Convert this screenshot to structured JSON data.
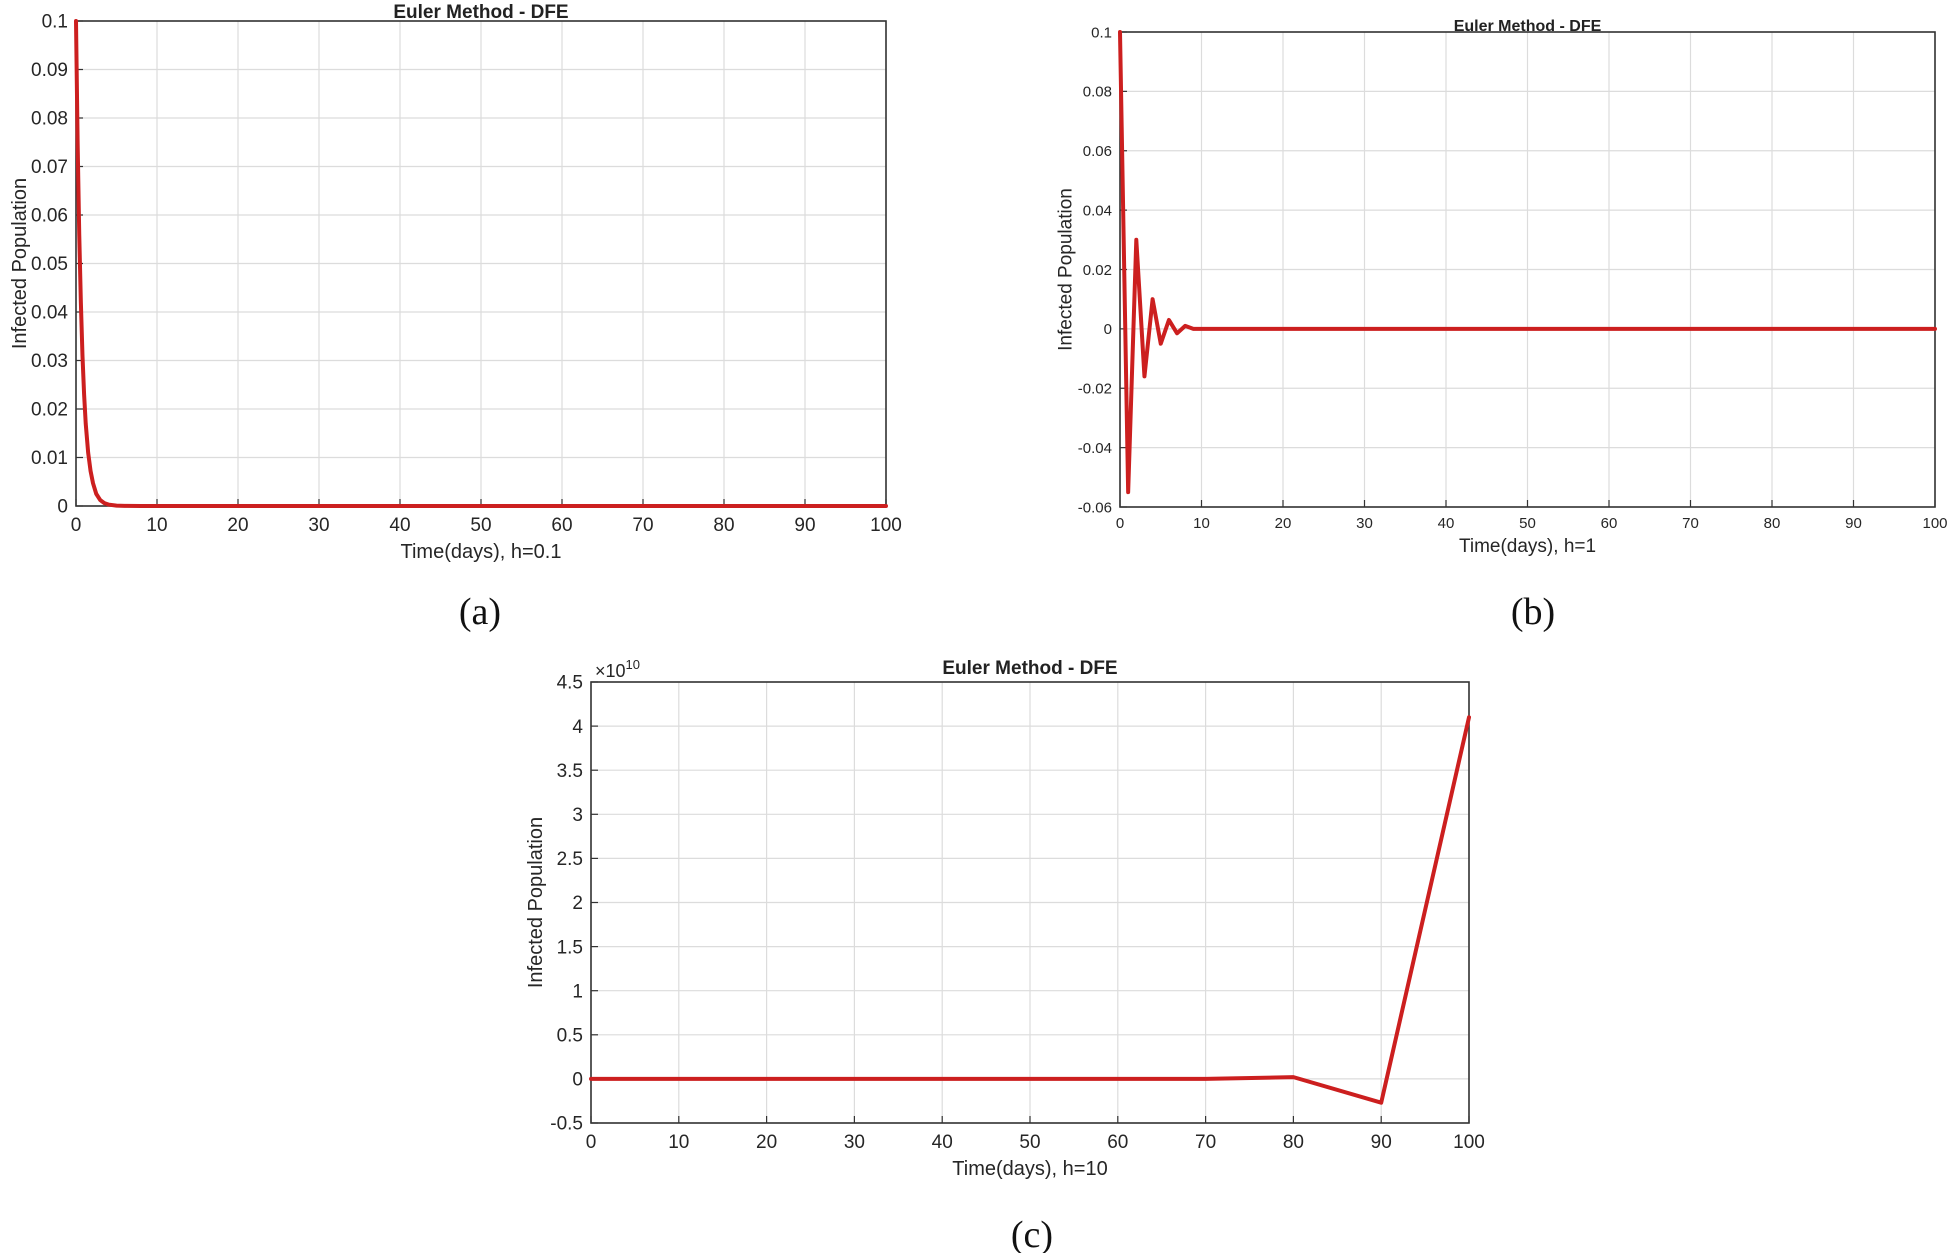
{
  "chart_data": [
    {
      "id": "a",
      "type": "line",
      "title": "Euler Method - DFE",
      "xlabel": "Time(days), h=0.1",
      "ylabel": "Infected Population",
      "caption": "(a)",
      "xlim": [
        0,
        100
      ],
      "ylim": [
        0,
        0.1
      ],
      "xticks": [
        "0",
        "10",
        "20",
        "30",
        "40",
        "50",
        "60",
        "70",
        "80",
        "90",
        "100"
      ],
      "yticks": [
        "0",
        "0.01",
        "0.02",
        "0.03",
        "0.04",
        "0.05",
        "0.06",
        "0.07",
        "0.08",
        "0.09",
        "0.1"
      ],
      "grid": true,
      "color": "#cc1f1f",
      "series": [
        {
          "x": [
            0,
            0.2,
            0.4,
            0.6,
            0.8,
            1.0,
            1.2,
            1.5,
            1.8,
            2.1,
            2.5,
            3.0,
            3.5,
            4.0,
            5.0,
            6.0,
            8.0,
            10,
            20,
            30,
            40,
            50,
            60,
            70,
            80,
            90,
            100
          ],
          "y": [
            0.1,
            0.075,
            0.056,
            0.042,
            0.031,
            0.023,
            0.017,
            0.011,
            0.0072,
            0.0047,
            0.0025,
            0.0012,
            0.0006,
            0.0003,
            8e-05,
            2e-05,
            0,
            0,
            0,
            0,
            0,
            0,
            0,
            0,
            0,
            0,
            0
          ]
        }
      ]
    },
    {
      "id": "b",
      "type": "line",
      "title": "Euler Method - DFE",
      "xlabel": "Time(days), h=1",
      "ylabel": "Infected Population",
      "caption": "(b)",
      "xlim": [
        0,
        100
      ],
      "ylim": [
        -0.06,
        0.1
      ],
      "xticks": [
        "0",
        "10",
        "20",
        "30",
        "40",
        "50",
        "60",
        "70",
        "80",
        "90",
        "100"
      ],
      "yticks": [
        "-0.06",
        "-0.04",
        "-0.02",
        "0",
        "0.02",
        "0.04",
        "0.06",
        "0.08",
        "0.1"
      ],
      "grid": true,
      "color": "#cc1f1f",
      "series": [
        {
          "x": [
            0,
            1,
            2,
            3,
            4,
            5,
            6,
            7,
            8,
            9,
            10,
            20,
            30,
            40,
            50,
            60,
            70,
            80,
            90,
            100
          ],
          "y": [
            0.1,
            -0.055,
            0.03,
            -0.016,
            0.01,
            -0.005,
            0.003,
            -0.0015,
            0.001,
            0,
            0,
            0,
            0,
            0,
            0,
            0,
            0,
            0,
            0,
            0
          ]
        }
      ]
    },
    {
      "id": "c",
      "type": "line",
      "title": "Euler Method - DFE",
      "xlabel": "Time(days), h=10",
      "ylabel": "Infected Population",
      "caption": "(c)",
      "exponent_label": "×10",
      "exponent_power": "10",
      "xlim": [
        0,
        100
      ],
      "ylim": [
        -0.5,
        4.5
      ],
      "xticks": [
        "0",
        "10",
        "20",
        "30",
        "40",
        "50",
        "60",
        "70",
        "80",
        "90",
        "100"
      ],
      "yticks": [
        "-0.5",
        "0",
        "0.5",
        "1",
        "1.5",
        "2",
        "2.5",
        "3",
        "3.5",
        "4",
        "4.5"
      ],
      "grid": true,
      "color": "#cc1f1f",
      "series": [
        {
          "x": [
            0,
            10,
            20,
            30,
            40,
            50,
            60,
            70,
            80,
            90,
            100
          ],
          "y": [
            0,
            0,
            0,
            0,
            0,
            0,
            0,
            0,
            0.02,
            -0.27,
            4.1
          ]
        }
      ]
    }
  ]
}
